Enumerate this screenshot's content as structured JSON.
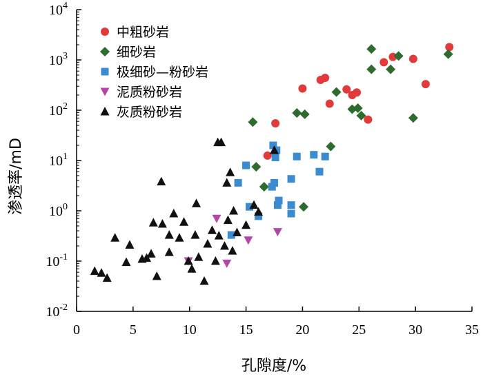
{
  "chart_data": {
    "type": "scatter",
    "xlabel": "孔隙度/%",
    "ylabel": "渗透率/mD",
    "xlim": [
      0,
      35
    ],
    "ylim": [
      0.01,
      10000
    ],
    "yscale": "log",
    "x_ticks": [
      0,
      5,
      10,
      15,
      20,
      25,
      30,
      35
    ],
    "y_ticks": [
      {
        "value": 0.01,
        "base": "10",
        "exp": "-2"
      },
      {
        "value": 0.1,
        "base": "10",
        "exp": "-1"
      },
      {
        "value": 1,
        "base": "10",
        "exp": "0"
      },
      {
        "value": 10,
        "base": "10",
        "exp": "1"
      },
      {
        "value": 100,
        "base": "10",
        "exp": "2"
      },
      {
        "value": 1000,
        "base": "10",
        "exp": "3"
      },
      {
        "value": 10000,
        "base": "10",
        "exp": "4"
      }
    ],
    "grid": false,
    "legend_position": "top-left",
    "series": [
      {
        "name": "中粗砂岩",
        "marker": "circle",
        "color": "#e03a3a",
        "points": [
          [
            17.6,
            55
          ],
          [
            16.9,
            12.5
          ],
          [
            20.0,
            270
          ],
          [
            21.6,
            400
          ],
          [
            22.0,
            440
          ],
          [
            22.4,
            135
          ],
          [
            23.9,
            260
          ],
          [
            24.4,
            200
          ],
          [
            24.8,
            225
          ],
          [
            25.8,
            65
          ],
          [
            27.2,
            900
          ],
          [
            28.0,
            1150
          ],
          [
            29.8,
            1050
          ],
          [
            30.9,
            330
          ],
          [
            33.0,
            1800
          ]
        ]
      },
      {
        "name": "细砂岩",
        "marker": "diamond",
        "color": "#2e6b2e",
        "points": [
          [
            15.6,
            58
          ],
          [
            15.9,
            7.5
          ],
          [
            16.6,
            3.0
          ],
          [
            19.5,
            88
          ],
          [
            20.2,
            83
          ],
          [
            20.1,
            1.2
          ],
          [
            22.5,
            19
          ],
          [
            23.0,
            230
          ],
          [
            24.4,
            105
          ],
          [
            24.9,
            110
          ],
          [
            25.2,
            78
          ],
          [
            26.1,
            1650
          ],
          [
            26.1,
            650
          ],
          [
            27.8,
            650
          ],
          [
            28.5,
            1200
          ],
          [
            29.8,
            70
          ],
          [
            32.9,
            1300
          ]
        ]
      },
      {
        "name": "极细砂—粉砂岩",
        "marker": "square",
        "color": "#3a8bd0",
        "points": [
          [
            13.7,
            0.33
          ],
          [
            14.3,
            3.6
          ],
          [
            15.0,
            8.0
          ],
          [
            15.3,
            1.2
          ],
          [
            16.1,
            0.78
          ],
          [
            17.3,
            3.0
          ],
          [
            17.4,
            20
          ],
          [
            17.5,
            3.6
          ],
          [
            17.6,
            11.5
          ],
          [
            17.7,
            16
          ],
          [
            17.8,
            1.3
          ],
          [
            17.9,
            1.6
          ],
          [
            19.0,
            4.3
          ],
          [
            19.0,
            1.3
          ],
          [
            19.0,
            0.88
          ],
          [
            19.5,
            12
          ],
          [
            21.0,
            13
          ],
          [
            21.5,
            6.0
          ],
          [
            22.0,
            12
          ]
        ]
      },
      {
        "name": "泥质粉砂岩",
        "marker": "triangle-down",
        "color": "#b347a8",
        "points": [
          [
            9.9,
            0.1
          ],
          [
            12.4,
            0.7
          ],
          [
            13.3,
            0.09
          ],
          [
            15.2,
            0.26
          ],
          [
            17.8,
            0.38
          ]
        ]
      },
      {
        "name": "灰质粉砂岩",
        "marker": "triangle-up",
        "color": "#111111",
        "points": [
          [
            1.6,
            0.063
          ],
          [
            2.2,
            0.058
          ],
          [
            2.7,
            0.046
          ],
          [
            3.4,
            0.29
          ],
          [
            4.4,
            0.095
          ],
          [
            4.7,
            0.21
          ],
          [
            5.8,
            0.11
          ],
          [
            6.2,
            0.115
          ],
          [
            6.6,
            0.14
          ],
          [
            6.8,
            0.58
          ],
          [
            7.1,
            0.05
          ],
          [
            7.5,
            3.8
          ],
          [
            7.6,
            0.55
          ],
          [
            8.2,
            0.15
          ],
          [
            8.2,
            0.33
          ],
          [
            8.6,
            0.88
          ],
          [
            9.1,
            0.29
          ],
          [
            9.5,
            0.6
          ],
          [
            9.9,
            0.1
          ],
          [
            10.2,
            0.07
          ],
          [
            10.5,
            0.33
          ],
          [
            10.6,
            1.4
          ],
          [
            10.8,
            0.12
          ],
          [
            11.3,
            0.04
          ],
          [
            11.6,
            0.22
          ],
          [
            12.0,
            0.41
          ],
          [
            12.3,
            0.1
          ],
          [
            12.5,
            23
          ],
          [
            12.6,
            0.32
          ],
          [
            12.8,
            23
          ],
          [
            13.1,
            0.2
          ],
          [
            13.3,
            3.6
          ],
          [
            13.4,
            0.65
          ],
          [
            13.6,
            5.8
          ],
          [
            13.8,
            0.16
          ],
          [
            13.9,
            1.0
          ],
          [
            14.2,
            0.37
          ],
          [
            15.0,
            0.52
          ],
          [
            15.7,
            1.3
          ],
          [
            16.1,
            0.95
          ],
          [
            17.5,
            16
          ]
        ]
      }
    ]
  }
}
